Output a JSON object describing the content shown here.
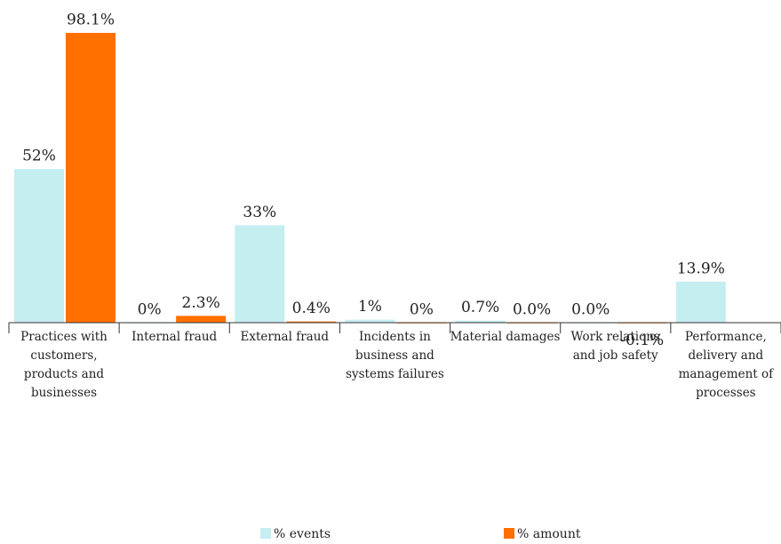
{
  "chart_data": {
    "type": "bar",
    "categories": [
      "Practices with customers, products and businesses",
      "Internal fraud",
      "External fraud",
      "Incidents in business and systems failures",
      "Material damages",
      "Work relations and job safety",
      "Performance, delivery and management of processes"
    ],
    "series": [
      {
        "name": "% events",
        "color": "#c5eef0",
        "values": [
          52,
          0,
          33,
          1,
          0.7,
          0.0,
          13.9
        ],
        "value_labels": [
          "52%",
          "0%",
          "33%",
          "1%",
          "0.7%",
          "0.0%",
          "13.9%"
        ]
      },
      {
        "name": "% amount",
        "color": "#ff7000",
        "values": [
          98.1,
          2.3,
          0.4,
          0,
          0.0,
          -0.1,
          null
        ],
        "value_labels": [
          "98.1%",
          "2.3%",
          "0.4%",
          "0%",
          "0.0%",
          "-0.1%",
          null
        ]
      }
    ],
    "legend": "bottom"
  }
}
